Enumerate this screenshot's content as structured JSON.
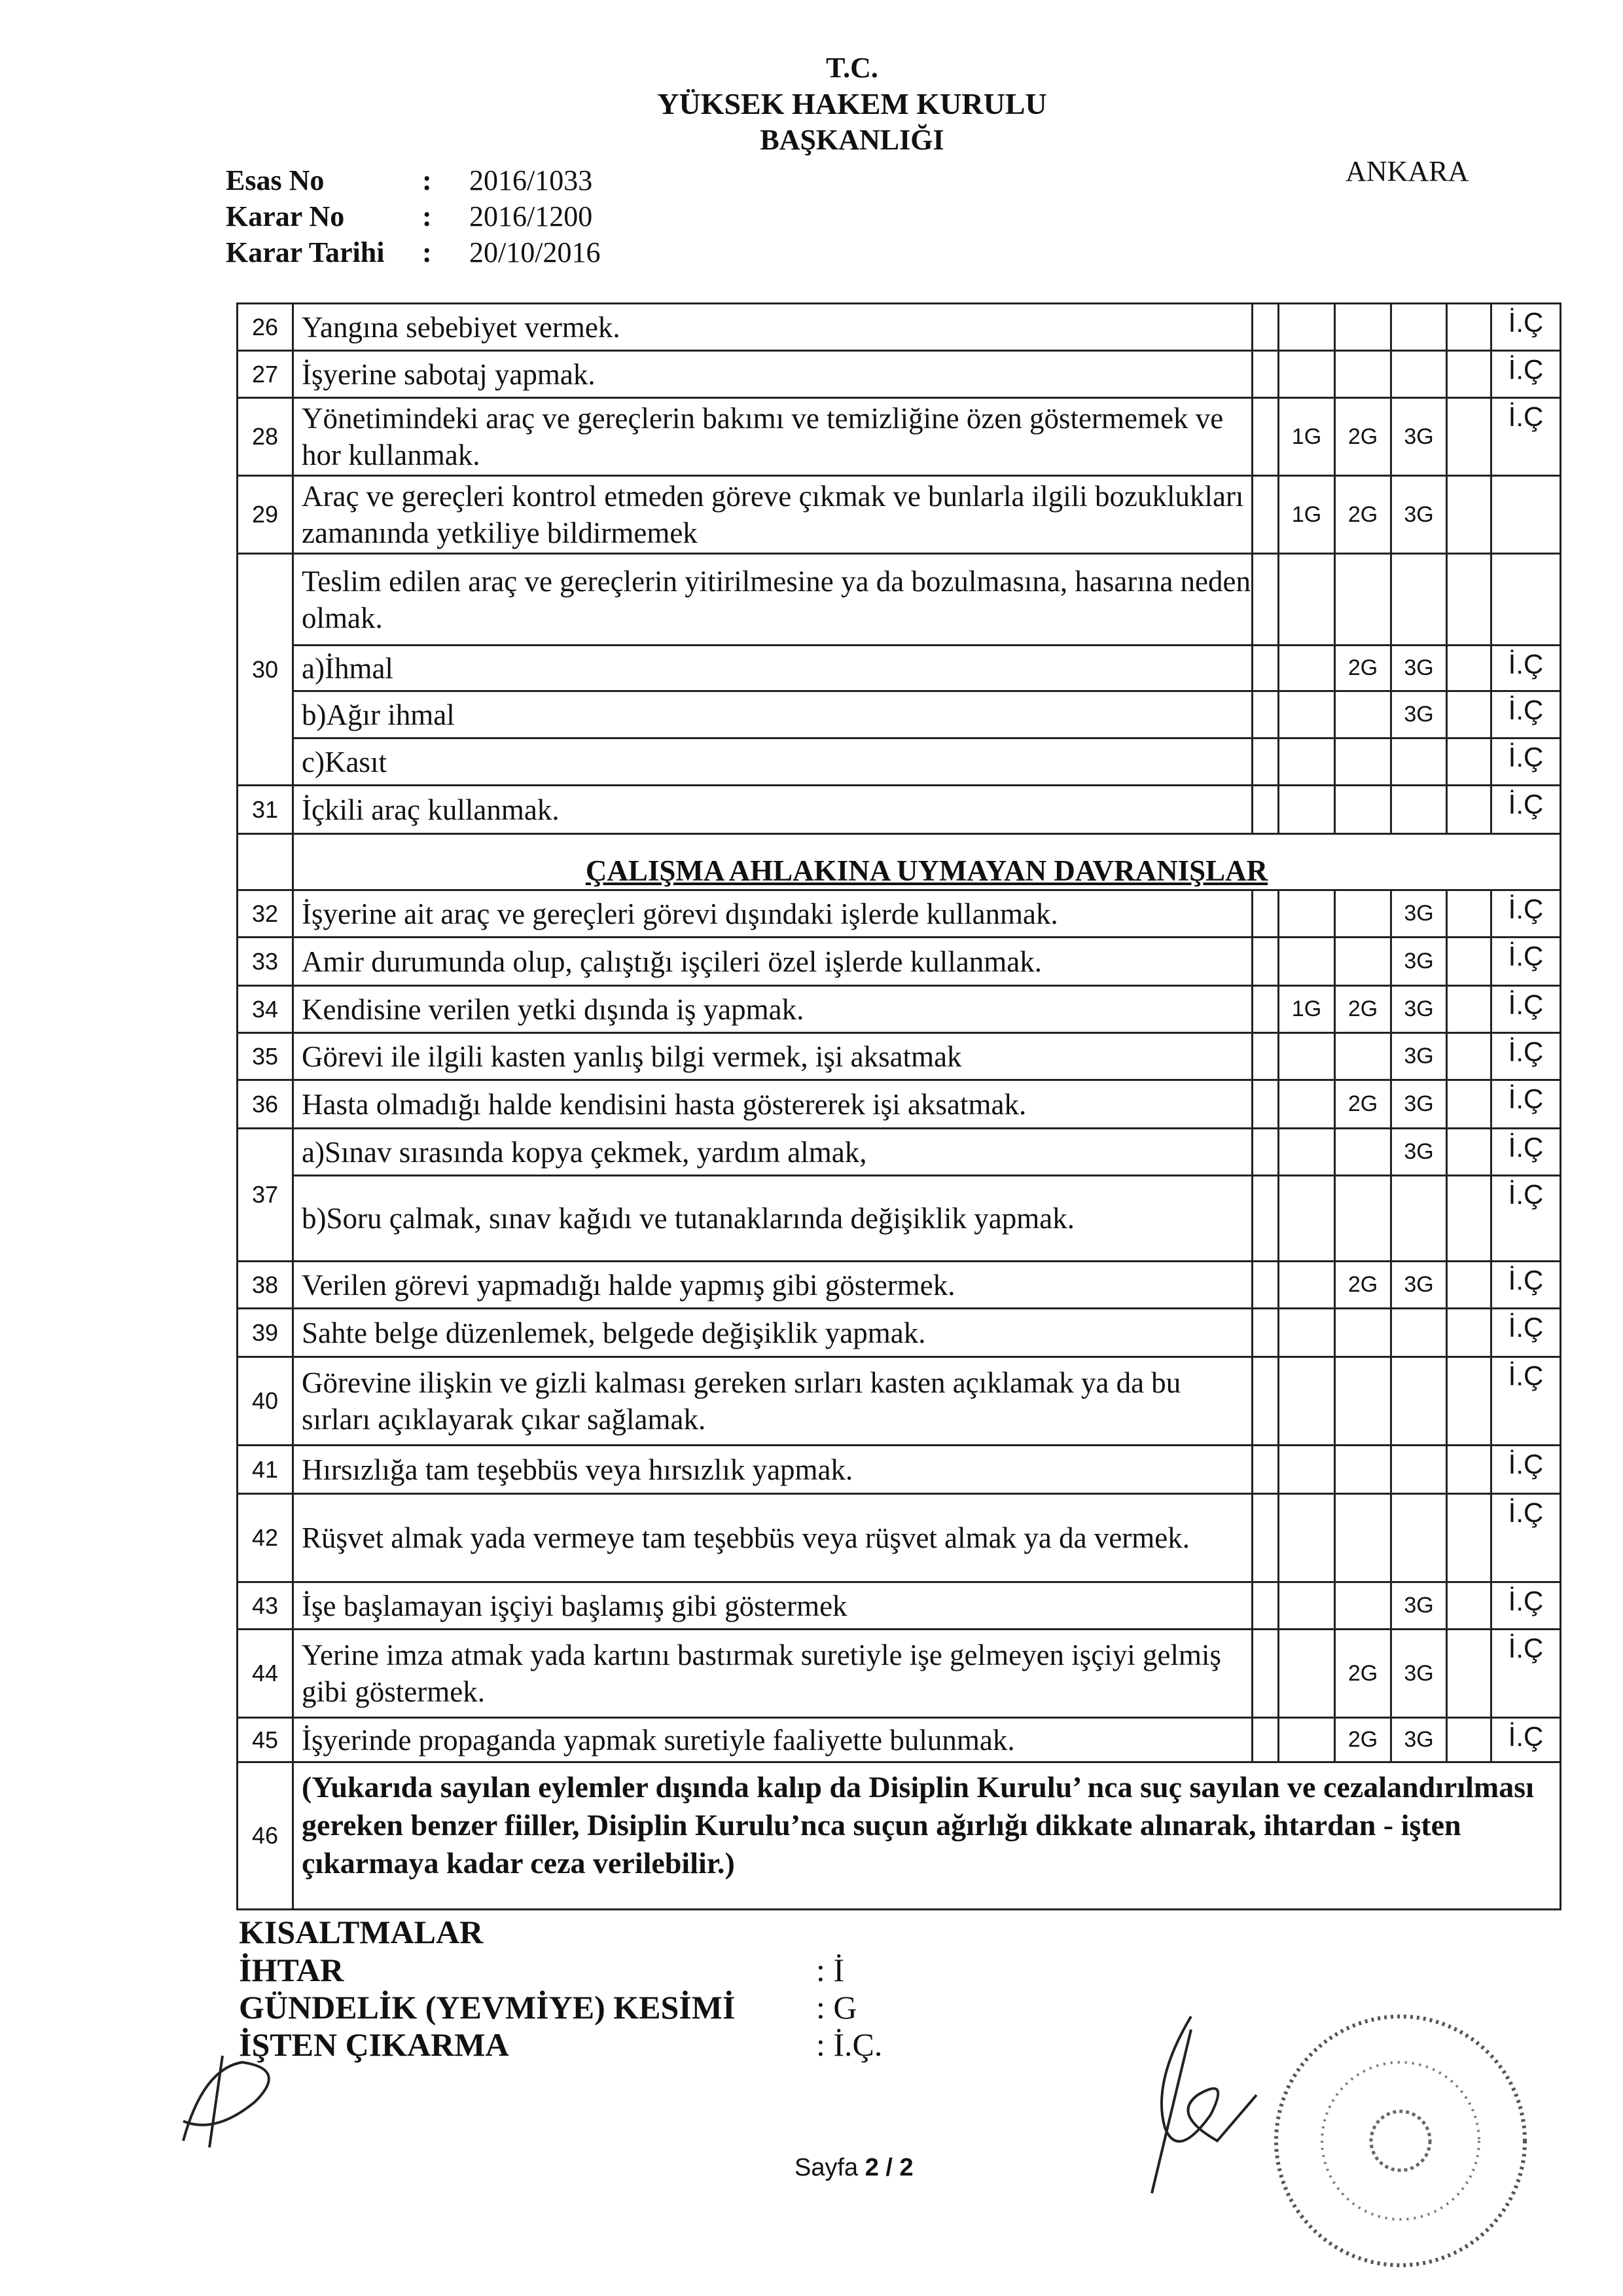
{
  "header": {
    "line1": "T.C.",
    "line2": "YÜKSEK HAKEM KURULU",
    "line3": "BAŞKANLIĞI",
    "city": "ANKARA"
  },
  "meta": [
    {
      "label": "Esas No",
      "sep": ":",
      "value": "2016/1033"
    },
    {
      "label": "Karar No",
      "sep": ":",
      "value": "2016/1200"
    },
    {
      "label": "Karar Tarihi",
      "sep": ":",
      "value": "20/10/2016"
    }
  ],
  "table": {
    "rows": [
      {
        "type": "row",
        "num": "26",
        "text": "Yangına sebebiyet vermek.",
        "g1": "",
        "g2": "",
        "g3": "",
        "ic": "İ.Ç"
      },
      {
        "type": "row",
        "num": "27",
        "text": "İşyerine sabotaj yapmak.",
        "g1": "",
        "g2": "",
        "g3": "",
        "ic": "İ.Ç"
      },
      {
        "type": "row",
        "num": "28",
        "text": "Yönetimindeki araç ve gereçlerin bakımı ve temizliğine özen göstermemek ve hor kullanmak.",
        "g1": "1G",
        "g2": "2G",
        "g3": "3G",
        "ic": "İ.Ç"
      },
      {
        "type": "row",
        "num": "29",
        "text": "Araç ve gereçleri kontrol etmeden göreve çıkmak ve bunlarla ilgili bozuklukları zamanında yetkiliye bildirmemek",
        "g1": "1G",
        "g2": "2G",
        "g3": "3G",
        "ic": ""
      },
      {
        "type": "row",
        "num": "30",
        "span": 4,
        "text": "Teslim edilen araç ve gereçlerin yitirilmesine ya da bozulmasına, hasarına neden olmak.",
        "g1": "",
        "g2": "",
        "g3": "",
        "ic": ""
      },
      {
        "type": "sub",
        "text": "a)İhmal",
        "g1": "",
        "g2": "2G",
        "g3": "3G",
        "ic": "İ.Ç"
      },
      {
        "type": "sub",
        "text": "b)Ağır ihmal",
        "g1": "",
        "g2": "",
        "g3": "3G",
        "ic": "İ.Ç"
      },
      {
        "type": "sub",
        "text": "c)Kasıt",
        "g1": "",
        "g2": "",
        "g3": "",
        "ic": "İ.Ç"
      },
      {
        "type": "row",
        "num": "31",
        "text": "İçkili araç kullanmak.",
        "g1": "",
        "g2": "",
        "g3": "",
        "ic": "İ.Ç"
      },
      {
        "type": "section",
        "text": "ÇALIŞMA AHLAKINA UYMAYAN DAVRANIŞLAR"
      },
      {
        "type": "row",
        "num": "32",
        "text": "İşyerine ait araç ve gereçleri görevi dışındaki işlerde kullanmak.",
        "g1": "",
        "g2": "",
        "g3": "3G",
        "ic": "İ.Ç"
      },
      {
        "type": "row",
        "num": "33",
        "text": "Amir durumunda olup, çalıştığı işçileri özel işlerde kullanmak.",
        "g1": "",
        "g2": "",
        "g3": "3G",
        "ic": "İ.Ç"
      },
      {
        "type": "row",
        "num": "34",
        "text": "Kendisine verilen yetki dışında iş yapmak.",
        "g1": "1G",
        "g2": "2G",
        "g3": "3G",
        "ic": "İ.Ç"
      },
      {
        "type": "row",
        "num": "35",
        "text": "Görevi ile ilgili kasten yanlış bilgi vermek, işi aksatmak",
        "g1": "",
        "g2": "",
        "g3": "3G",
        "ic": "İ.Ç"
      },
      {
        "type": "row",
        "num": "36",
        "text": "Hasta olmadığı halde kendisini hasta göstererek işi aksatmak.",
        "g1": "",
        "g2": "2G",
        "g3": "3G",
        "ic": "İ.Ç"
      },
      {
        "type": "row",
        "num": "37",
        "span": 2,
        "text": "a)Sınav sırasında kopya çekmek, yardım almak,",
        "g1": "",
        "g2": "",
        "g3": "3G",
        "ic": "İ.Ç"
      },
      {
        "type": "sub",
        "text": "b)Soru çalmak, sınav kağıdı ve  tutanaklarında değişiklik yapmak.",
        "g1": "",
        "g2": "",
        "g3": "",
        "ic": "İ.Ç"
      },
      {
        "type": "row",
        "num": "38",
        "text": "Verilen görevi yapmadığı halde yapmış gibi göstermek.",
        "g1": "",
        "g2": "2G",
        "g3": "3G",
        "ic": "İ.Ç"
      },
      {
        "type": "row",
        "num": "39",
        "text": "Sahte belge düzenlemek, belgede değişiklik yapmak.",
        "g1": "",
        "g2": "",
        "g3": "",
        "ic": "İ.Ç"
      },
      {
        "type": "row",
        "num": "40",
        "text": "Görevine ilişkin ve gizli kalması gereken sırları kasten açıklamak ya da bu sırları açıklayarak çıkar sağlamak.",
        "g1": "",
        "g2": "",
        "g3": "",
        "ic": "İ.Ç"
      },
      {
        "type": "row",
        "num": "41",
        "text": "Hırsızlığa tam teşebbüs veya hırsızlık yapmak.",
        "g1": "",
        "g2": "",
        "g3": "",
        "ic": "İ.Ç"
      },
      {
        "type": "row",
        "num": "42",
        "text": "Rüşvet almak yada vermeye tam teşebbüs veya rüşvet almak ya da vermek.",
        "g1": "",
        "g2": "",
        "g3": "",
        "ic": "İ.Ç"
      },
      {
        "type": "row",
        "num": "43",
        "text": "İşe başlamayan işçiyi başlamış gibi göstermek",
        "g1": "",
        "g2": "",
        "g3": "3G",
        "ic": "İ.Ç"
      },
      {
        "type": "row",
        "num": "44",
        "text": "Yerine imza atmak yada kartını bastırmak suretiyle işe gelmeyen işçiyi gelmiş gibi göstermek.",
        "g1": "",
        "g2": "2G",
        "g3": "3G",
        "ic": "İ.Ç"
      },
      {
        "type": "row",
        "num": "45",
        "text": "İşyerinde propaganda yapmak suretiyle faaliyette bulunmak.",
        "g1": "",
        "g2": "2G",
        "g3": "3G",
        "ic": "İ.Ç"
      },
      {
        "type": "full",
        "num": "46",
        "text": "(Yukarıda sayılan eylemler dışında kalıp da Disiplin Kurulu’ nca suç sayılan ve cezalandırılması gereken benzer fiiller, Disiplin Kurulu’nca  suçun ağırlığı dikkate alınarak, ihtardan - işten çıkarmaya kadar ceza verilebilir.)"
      }
    ]
  },
  "abbreviations": {
    "title": "KISALTMALAR",
    "items": [
      {
        "label": "İHTAR",
        "value": ": İ"
      },
      {
        "label": "GÜNDELİK (YEVMİYE) KESİMİ",
        "value": ": G"
      },
      {
        "label": "İŞTEN ÇIKARMA",
        "value": ": İ.Ç."
      }
    ]
  },
  "footer": {
    "page_prefix": "Sayfa ",
    "page_value": "2 / 2"
  }
}
